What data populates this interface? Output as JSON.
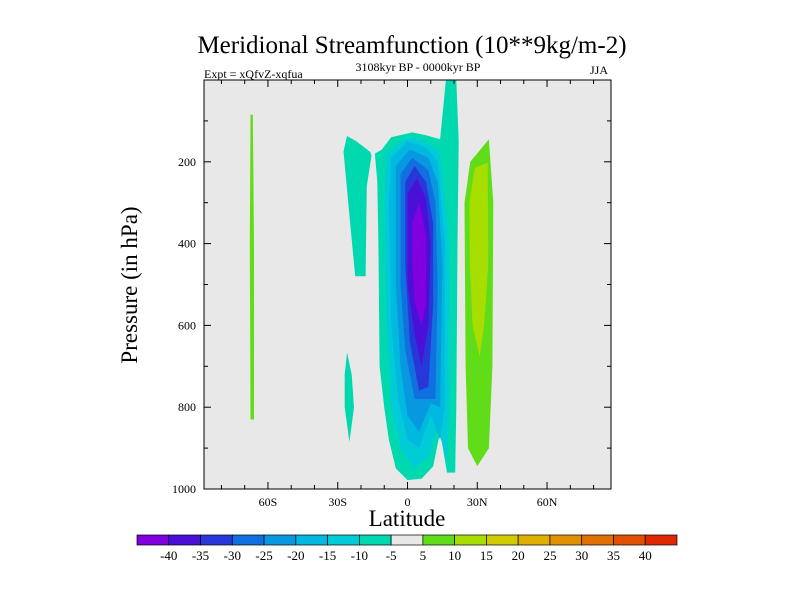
{
  "chart_data": {
    "type": "heatmap",
    "subtype": "filled-contour",
    "title": "Meridional Streamfunction (10**9kg/m-2)",
    "subtitle": "3108kyr BP - 0000kyr BP",
    "left_label": "Expt = xQfvZ-xqfua",
    "right_label": "JJA",
    "xlabel": "Latitude",
    "ylabel": "Pressure (in hPa)",
    "xlim": [
      -87.5,
      87.5
    ],
    "ylim": [
      0,
      1000
    ],
    "y_reversed": true,
    "x_ticks": [
      {
        "v": -60,
        "label": "60S"
      },
      {
        "v": -30,
        "label": "30S"
      },
      {
        "v": 0,
        "label": "0"
      },
      {
        "v": 30,
        "label": "30N"
      },
      {
        "v": 60,
        "label": "60N"
      }
    ],
    "y_ticks": [
      {
        "v": 200,
        "label": "200"
      },
      {
        "v": 400,
        "label": "400"
      },
      {
        "v": 600,
        "label": "600"
      },
      {
        "v": 800,
        "label": "800"
      },
      {
        "v": 1000,
        "label": "1000"
      }
    ],
    "background_color": "#e8e8e8",
    "colorbar": {
      "labels": [
        "-40",
        "-35",
        "-30",
        "-25",
        "-20",
        "-15",
        "-10",
        "-5",
        "5",
        "10",
        "15",
        "20",
        "25",
        "30",
        "35",
        "40"
      ],
      "colors": [
        "#8000e0",
        "#4a10d8",
        "#2838d8",
        "#1070e0",
        "#0898e0",
        "#00b8e0",
        "#00ccd8",
        "#00d8b0",
        "#e8e8e8",
        "#60dd18",
        "#a8dd00",
        "#d0cc00",
        "#e0b000",
        "#e09000",
        "#e07000",
        "#e05000",
        "#e02800"
      ]
    },
    "regions": [
      {
        "level": -5,
        "color": "#00d8b0",
        "points": [
          [
            -11,
            170
          ],
          [
            -7,
            140
          ],
          [
            2,
            128
          ],
          [
            8,
            135
          ],
          [
            14,
            145
          ],
          [
            16.5,
            0
          ],
          [
            21,
            0
          ],
          [
            22,
            150
          ],
          [
            21.5,
            400
          ],
          [
            21,
            800
          ],
          [
            20.5,
            960
          ],
          [
            17,
            960
          ],
          [
            14,
            860
          ],
          [
            11,
            945
          ],
          [
            6,
            975
          ],
          [
            0,
            978
          ],
          [
            -5,
            950
          ],
          [
            -8,
            880
          ],
          [
            -10,
            800
          ],
          [
            -12,
            700
          ],
          [
            -12.5,
            400
          ],
          [
            -13,
            250
          ],
          [
            -14,
            180
          ]
        ]
      },
      {
        "level": -5,
        "color": "#00d8b0",
        "points": [
          [
            -27.5,
            175
          ],
          [
            -26,
            137
          ],
          [
            -22,
            150
          ],
          [
            -16,
            176
          ],
          [
            -15.5,
            185
          ],
          [
            -17.5,
            260
          ],
          [
            -18,
            480
          ],
          [
            -22.5,
            480
          ],
          [
            -25,
            330
          ]
        ]
      },
      {
        "level": -5,
        "color": "#00d8b0",
        "points": [
          [
            -27,
            720
          ],
          [
            -26,
            666
          ],
          [
            -24,
            720
          ],
          [
            -23,
            800
          ],
          [
            -25,
            885
          ],
          [
            -27,
            800
          ]
        ]
      },
      {
        "level": -10,
        "color": "#00ccd8",
        "points": [
          [
            -9,
            180
          ],
          [
            0,
            140
          ],
          [
            8,
            150
          ],
          [
            14,
            180
          ],
          [
            18,
            400
          ],
          [
            18,
            800
          ],
          [
            17,
            930
          ],
          [
            13,
            850
          ],
          [
            9,
            920
          ],
          [
            3,
            950
          ],
          [
            -3,
            900
          ],
          [
            -7,
            800
          ],
          [
            -9,
            600
          ],
          [
            -10,
            300
          ]
        ]
      },
      {
        "level": -15,
        "color": "#00b8e0",
        "points": [
          [
            -7,
            190
          ],
          [
            0,
            150
          ],
          [
            8,
            165
          ],
          [
            13,
            200
          ],
          [
            16,
            400
          ],
          [
            16,
            800
          ],
          [
            14,
            880
          ],
          [
            10,
            820
          ],
          [
            5,
            900
          ],
          [
            0,
            880
          ],
          [
            -4,
            780
          ],
          [
            -7,
            600
          ],
          [
            -8,
            300
          ]
        ]
      },
      {
        "level": -20,
        "color": "#0898e0",
        "points": [
          [
            -5,
            210
          ],
          [
            1,
            170
          ],
          [
            9,
            190
          ],
          [
            13,
            250
          ],
          [
            15,
            450
          ],
          [
            14,
            800
          ],
          [
            10,
            790
          ],
          [
            5,
            860
          ],
          [
            0,
            820
          ],
          [
            -3,
            700
          ],
          [
            -5,
            500
          ]
        ]
      },
      {
        "level": -25,
        "color": "#1070e0",
        "points": [
          [
            -3,
            230
          ],
          [
            2,
            190
          ],
          [
            9,
            220
          ],
          [
            12,
            300
          ],
          [
            13,
            500
          ],
          [
            12,
            780
          ],
          [
            7,
            780
          ],
          [
            3,
            780
          ],
          [
            -1,
            660
          ],
          [
            -3,
            500
          ]
        ]
      },
      {
        "level": -30,
        "color": "#2838d8",
        "points": [
          [
            -1,
            250
          ],
          [
            3,
            210
          ],
          [
            8,
            250
          ],
          [
            11,
            350
          ],
          [
            11,
            550
          ],
          [
            9,
            750
          ],
          [
            5,
            760
          ],
          [
            1,
            640
          ],
          [
            -1,
            450
          ]
        ]
      },
      {
        "level": -35,
        "color": "#4a10d8",
        "points": [
          [
            0,
            280
          ],
          [
            4,
            240
          ],
          [
            8,
            290
          ],
          [
            10,
            400
          ],
          [
            9,
            600
          ],
          [
            6,
            700
          ],
          [
            3,
            620
          ],
          [
            0,
            500
          ]
        ]
      },
      {
        "level": -40,
        "color": "#8000e0",
        "points": [
          [
            2,
            350
          ],
          [
            5,
            300
          ],
          [
            8,
            380
          ],
          [
            8,
            550
          ],
          [
            6,
            600
          ],
          [
            3,
            540
          ],
          [
            2,
            450
          ]
        ]
      },
      {
        "level": 5,
        "color": "#60dd18",
        "points": [
          [
            24.5,
            300
          ],
          [
            27,
            200
          ],
          [
            35,
            145
          ],
          [
            36.9,
            300
          ],
          [
            36.5,
            700
          ],
          [
            35,
            900
          ],
          [
            30,
            944
          ],
          [
            26,
            900
          ],
          [
            25,
            700
          ]
        ]
      },
      {
        "level": 10,
        "color": "#a8dd00",
        "points": [
          [
            26.6,
            300
          ],
          [
            29,
            215
          ],
          [
            34.5,
            202
          ],
          [
            34.7,
            450
          ],
          [
            33,
            600
          ],
          [
            31,
            676
          ],
          [
            28,
            600
          ],
          [
            26.8,
            450
          ]
        ]
      },
      {
        "level": 5,
        "color": "#60dd18",
        "points": [
          [
            -67.5,
            85
          ],
          [
            -66.5,
            85
          ],
          [
            -66,
            400
          ],
          [
            -66,
            830
          ],
          [
            -67.5,
            830
          ],
          [
            -67.8,
            400
          ]
        ]
      }
    ]
  }
}
